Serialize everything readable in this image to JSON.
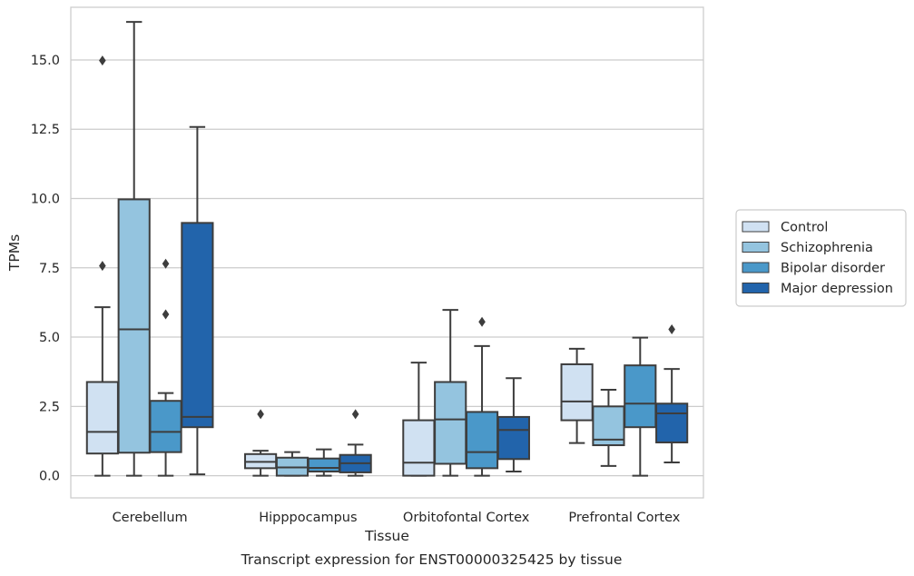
{
  "chart_data": {
    "type": "box",
    "title": "",
    "caption": "Transcript expression for ENST00000325425 by tissue",
    "xlabel": "Tissue",
    "ylabel": "TPMs",
    "ylim": [
      -0.8,
      16.9
    ],
    "yticks": [
      0.0,
      2.5,
      5.0,
      7.5,
      10.0,
      12.5,
      15.0
    ],
    "ytick_labels": [
      "0.0",
      "2.5",
      "5.0",
      "7.5",
      "10.0",
      "12.5",
      "15.0"
    ],
    "grid": "horizontal",
    "legend_position": "right",
    "categories": [
      "Cerebellum",
      "Hipppocampus",
      "Orbitofontal Cortex",
      "Prefrontal Cortex"
    ],
    "series": [
      {
        "name": "Control",
        "color": "#d0e1f2",
        "boxes": [
          {
            "whislo": 0.0,
            "q1": 0.8,
            "med": 1.58,
            "q3": 3.38,
            "whishi": 6.08,
            "fliers": [
              14.98,
              7.57
            ]
          },
          {
            "whislo": 0.0,
            "q1": 0.27,
            "med": 0.5,
            "q3": 0.78,
            "whishi": 0.9,
            "fliers": [
              2.22
            ]
          },
          {
            "whislo": 0.0,
            "q1": 0.0,
            "med": 0.47,
            "q3": 2.0,
            "whishi": 4.08,
            "fliers": []
          },
          {
            "whislo": 1.18,
            "q1": 2.0,
            "med": 2.68,
            "q3": 4.02,
            "whishi": 4.58,
            "fliers": []
          }
        ]
      },
      {
        "name": "Schizophrenia",
        "color": "#94c4df",
        "boxes": [
          {
            "whislo": 0.0,
            "q1": 0.83,
            "med": 5.28,
            "q3": 9.97,
            "whishi": 16.37,
            "fliers": []
          },
          {
            "whislo": 0.0,
            "q1": 0.0,
            "med": 0.3,
            "q3": 0.65,
            "whishi": 0.85,
            "fliers": []
          },
          {
            "whislo": 0.0,
            "q1": 0.43,
            "med": 2.03,
            "q3": 3.38,
            "whishi": 5.98,
            "fliers": []
          },
          {
            "whislo": 0.35,
            "q1": 1.1,
            "med": 1.3,
            "q3": 2.5,
            "whishi": 3.1,
            "fliers": []
          }
        ]
      },
      {
        "name": "Bipolar disorder",
        "color": "#4a98c9",
        "boxes": [
          {
            "whislo": 0.0,
            "q1": 0.85,
            "med": 1.58,
            "q3": 2.7,
            "whishi": 2.98,
            "fliers": [
              7.65,
              5.82
            ]
          },
          {
            "whislo": 0.0,
            "q1": 0.15,
            "med": 0.28,
            "q3": 0.62,
            "whishi": 0.95,
            "fliers": []
          },
          {
            "whislo": 0.0,
            "q1": 0.27,
            "med": 0.85,
            "q3": 2.3,
            "whishi": 4.68,
            "fliers": [
              5.55
            ]
          },
          {
            "whislo": 0.0,
            "q1": 1.75,
            "med": 2.6,
            "q3": 3.98,
            "whishi": 4.98,
            "fliers": []
          }
        ]
      },
      {
        "name": "Major depression",
        "color": "#2264ab",
        "boxes": [
          {
            "whislo": 0.05,
            "q1": 1.75,
            "med": 2.12,
            "q3": 9.12,
            "whishi": 12.58,
            "fliers": []
          },
          {
            "whislo": 0.0,
            "q1": 0.12,
            "med": 0.45,
            "q3": 0.75,
            "whishi": 1.12,
            "fliers": [
              2.22
            ]
          },
          {
            "whislo": 0.15,
            "q1": 0.6,
            "med": 1.65,
            "q3": 2.12,
            "whishi": 3.52,
            "fliers": []
          },
          {
            "whislo": 0.48,
            "q1": 1.2,
            "med": 2.25,
            "q3": 2.6,
            "whishi": 3.85,
            "fliers": [
              5.28
            ]
          }
        ]
      }
    ]
  }
}
